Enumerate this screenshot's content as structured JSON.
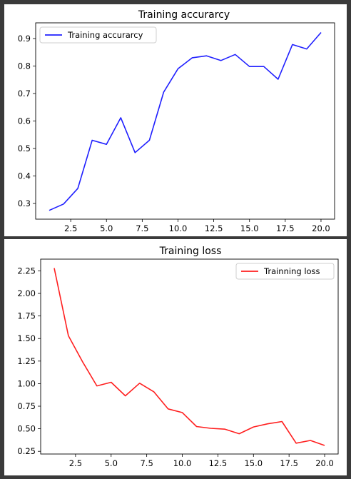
{
  "chart_data": [
    {
      "type": "line",
      "title": "Training accurarcy",
      "xlabel": "",
      "ylabel": "",
      "xlim": [
        0.05,
        20.95
      ],
      "ylim": [
        0.243,
        0.957
      ],
      "xticks": [
        2.5,
        5.0,
        7.5,
        10.0,
        12.5,
        15.0,
        17.5,
        20.0
      ],
      "xtick_labels": [
        "2.5",
        "5.0",
        "7.5",
        "10.0",
        "12.5",
        "15.0",
        "17.5",
        "20.0"
      ],
      "yticks": [
        0.3,
        0.4,
        0.5,
        0.6,
        0.7,
        0.8,
        0.9
      ],
      "ytick_labels": [
        "0.3",
        "0.4",
        "0.5",
        "0.6",
        "0.7",
        "0.8",
        "0.9"
      ],
      "legend_position": "upper left",
      "grid": false,
      "series": [
        {
          "name": "Training accurarcy",
          "color": "#1f1fff",
          "x": [
            1,
            2,
            3,
            4,
            5,
            6,
            7,
            8,
            9,
            10,
            11,
            12,
            13,
            14,
            15,
            16,
            17,
            18,
            19,
            20
          ],
          "y": [
            0.275,
            0.298,
            0.355,
            0.53,
            0.515,
            0.612,
            0.485,
            0.53,
            0.705,
            0.79,
            0.83,
            0.837,
            0.82,
            0.842,
            0.798,
            0.798,
            0.752,
            0.878,
            0.862,
            0.922
          ]
        }
      ]
    },
    {
      "type": "line",
      "title": "Training loss",
      "xlabel": "",
      "ylabel": "",
      "xlim": [
        0.05,
        20.95
      ],
      "ylim": [
        0.22,
        2.38
      ],
      "xticks": [
        2.5,
        5.0,
        7.5,
        10.0,
        12.5,
        15.0,
        17.5,
        20.0
      ],
      "xtick_labels": [
        "2.5",
        "5.0",
        "7.5",
        "10.0",
        "12.5",
        "15.0",
        "17.5",
        "20.0"
      ],
      "yticks": [
        0.25,
        0.5,
        0.75,
        1.0,
        1.25,
        1.5,
        1.75,
        2.0,
        2.25
      ],
      "ytick_labels": [
        "0.25",
        "0.50",
        "0.75",
        "1.00",
        "1.25",
        "1.50",
        "1.75",
        "2.00",
        "2.25"
      ],
      "legend_position": "upper right",
      "grid": false,
      "series": [
        {
          "name": "Trainning loss",
          "color": "#ff1f1f",
          "x": [
            1,
            2,
            3,
            4,
            5,
            6,
            7,
            8,
            9,
            10,
            11,
            12,
            13,
            14,
            15,
            16,
            17,
            18,
            19,
            20
          ],
          "y": [
            2.28,
            1.53,
            1.24,
            0.975,
            1.015,
            0.865,
            1.005,
            0.91,
            0.72,
            0.68,
            0.525,
            0.505,
            0.495,
            0.445,
            0.52,
            0.555,
            0.58,
            0.34,
            0.37,
            0.315
          ]
        }
      ]
    }
  ]
}
